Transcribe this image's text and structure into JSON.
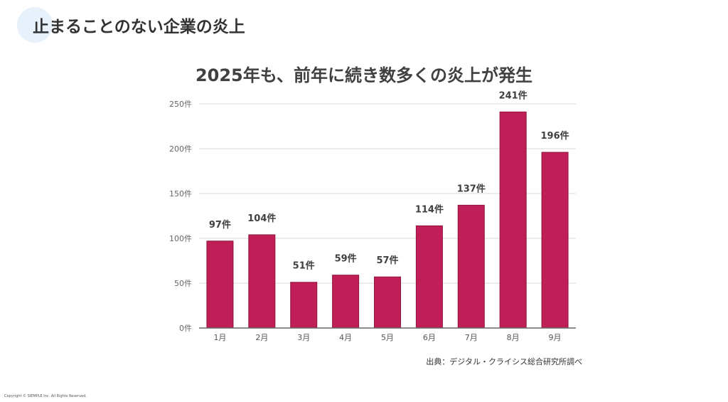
{
  "slide": {
    "title": "止まることのない企業の炎上",
    "source": "出典：デジタル・クライシス総合研究所調べ",
    "copyright": "Copyright © SIEMPLE Inc. All Rights Reserved."
  },
  "colors": {
    "bar": "#c01e56",
    "bar_border": "#8f1541",
    "grid": "#d9d9d9",
    "axis": "#666666",
    "accent_circle": "#e6f1fb"
  },
  "chart_data": {
    "type": "bar",
    "title": "2025年も、前年に続き数多くの炎上が発生",
    "categories": [
      "1月",
      "2月",
      "3月",
      "4月",
      "5月",
      "6月",
      "7月",
      "8月",
      "9月"
    ],
    "values": [
      97,
      104,
      51,
      59,
      57,
      114,
      137,
      241,
      196
    ],
    "data_labels": [
      "97件",
      "104件",
      "51件",
      "59件",
      "57件",
      "114件",
      "137件",
      "241件",
      "196件"
    ],
    "yticks": [
      0,
      50,
      100,
      150,
      200,
      250
    ],
    "ytick_labels": [
      "0件",
      "50件",
      "100件",
      "150件",
      "200件",
      "250件"
    ],
    "ylim": [
      0,
      250
    ],
    "xlabel": "",
    "ylabel": "",
    "grid": true
  }
}
